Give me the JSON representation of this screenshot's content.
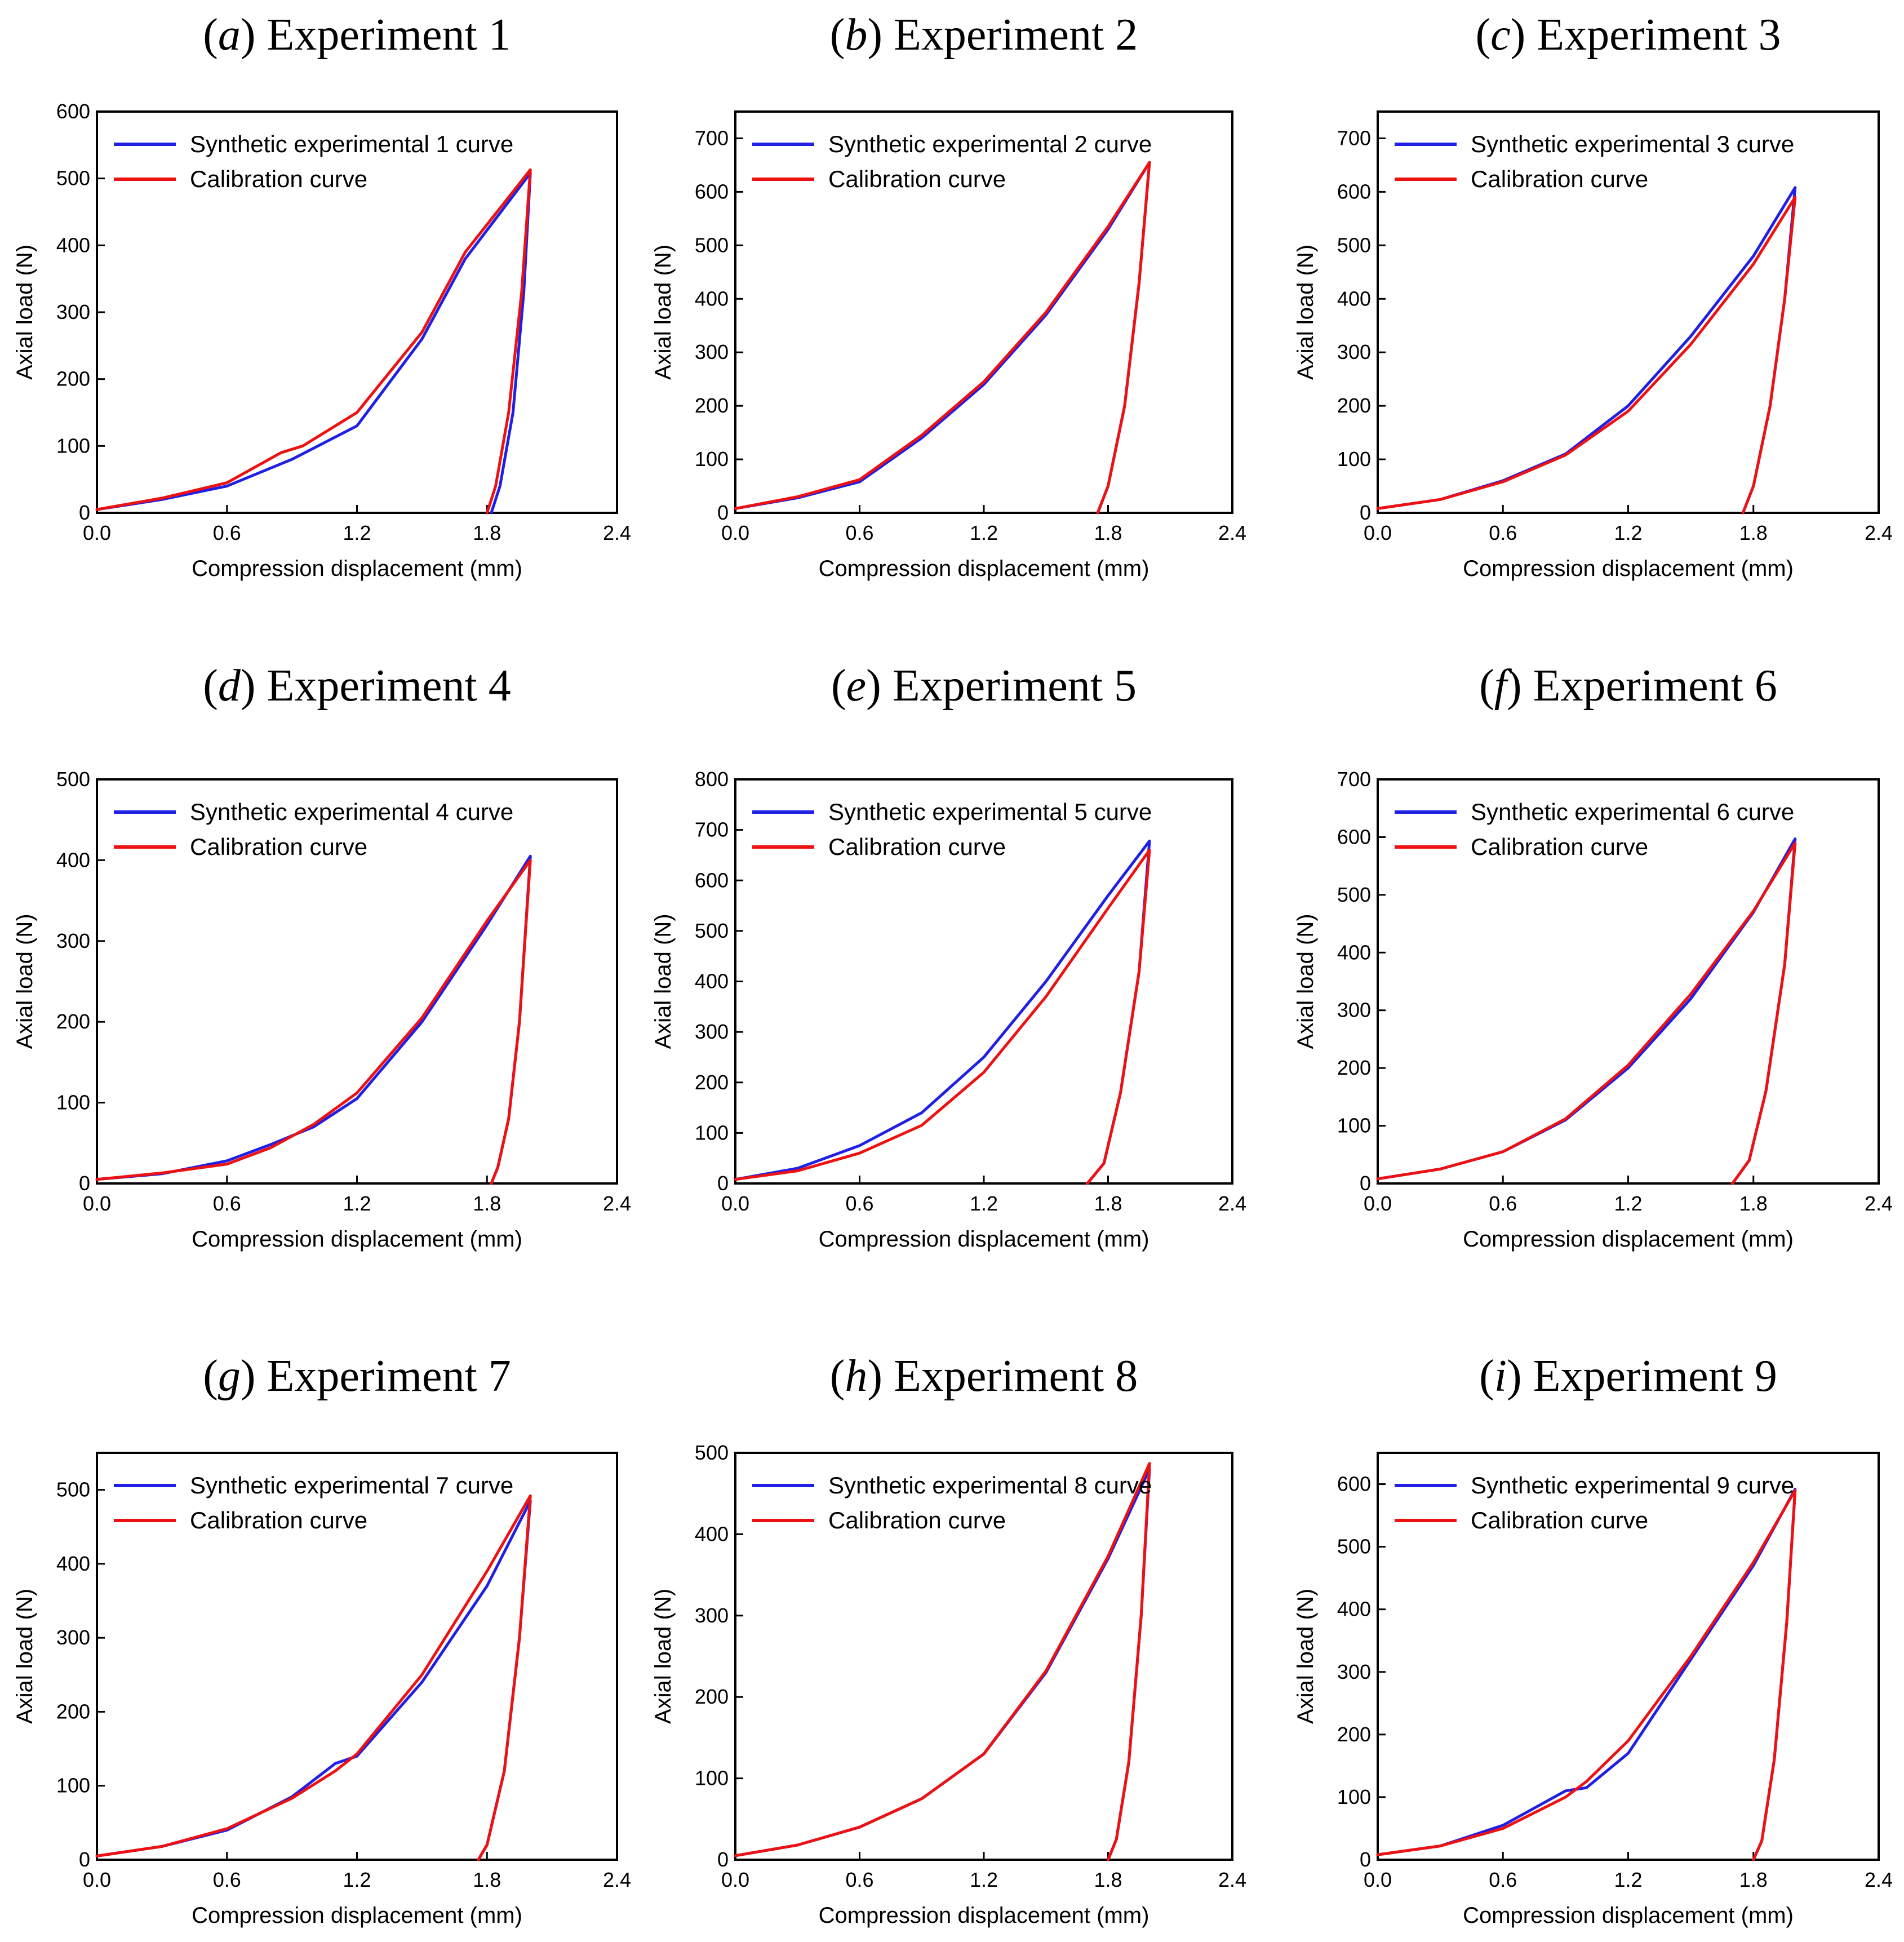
{
  "colors": {
    "synthetic": "#1f1fe6",
    "calibration": "#ee1111"
  },
  "chart_data": [
    {
      "type": "line",
      "panel": "a",
      "title": "Experiment 1",
      "xlabel": "Compression displacement (mm)",
      "ylabel": "Axial load (N)",
      "xlim": [
        0,
        2.4
      ],
      "ylim": [
        0,
        600
      ],
      "xticks": [
        "0.0",
        "0.6",
        "1.2",
        "1.8",
        "2.4"
      ],
      "yticks": [
        "0",
        "100",
        "200",
        "300",
        "400",
        "500",
        "600"
      ],
      "legend_loc": "top-left",
      "series": [
        {
          "name": "Synthetic experimental 1 curve",
          "x": [
            0,
            0.3,
            0.6,
            0.9,
            1.2,
            1.5,
            1.7,
            2.0,
            1.97,
            1.92,
            1.86,
            1.82
          ],
          "y": [
            5,
            20,
            40,
            80,
            130,
            260,
            380,
            508,
            330,
            150,
            40,
            0
          ]
        },
        {
          "name": "Calibration curve",
          "x": [
            0,
            0.3,
            0.6,
            0.85,
            0.95,
            1.2,
            1.5,
            1.7,
            2.0,
            1.96,
            1.9,
            1.84,
            1.8
          ],
          "y": [
            5,
            22,
            45,
            90,
            100,
            150,
            270,
            390,
            513,
            330,
            150,
            40,
            0
          ]
        }
      ]
    },
    {
      "type": "line",
      "panel": "b",
      "title": "Experiment 2",
      "xlabel": "Compression displacement (mm)",
      "ylabel": "Axial load (N)",
      "xlim": [
        0,
        2.4
      ],
      "ylim": [
        0,
        750
      ],
      "xticks": [
        "0.0",
        "0.6",
        "1.2",
        "1.8",
        "2.4"
      ],
      "yticks": [
        "0",
        "100",
        "200",
        "300",
        "400",
        "500",
        "600",
        "700"
      ],
      "legend_loc": "top-left",
      "series": [
        {
          "name": "Synthetic experimental 2 curve",
          "x": [
            0,
            0.3,
            0.6,
            0.9,
            1.2,
            1.5,
            1.8,
            2.0,
            1.95,
            1.88,
            1.8,
            1.75
          ],
          "y": [
            8,
            28,
            58,
            140,
            240,
            370,
            530,
            655,
            430,
            200,
            50,
            0
          ]
        },
        {
          "name": "Calibration curve",
          "x": [
            0,
            0.3,
            0.6,
            0.9,
            1.2,
            1.5,
            1.8,
            2.0,
            1.95,
            1.88,
            1.8,
            1.75
          ],
          "y": [
            8,
            30,
            62,
            145,
            245,
            375,
            535,
            655,
            430,
            200,
            50,
            0
          ]
        }
      ]
    },
    {
      "type": "line",
      "panel": "c",
      "title": "Experiment 3",
      "xlabel": "Compression displacement (mm)",
      "ylabel": "Axial load (N)",
      "xlim": [
        0,
        2.4
      ],
      "ylim": [
        0,
        750
      ],
      "xticks": [
        "0.0",
        "0.6",
        "1.2",
        "1.8",
        "2.4"
      ],
      "yticks": [
        "0",
        "100",
        "200",
        "300",
        "400",
        "500",
        "600",
        "700"
      ],
      "legend_loc": "top-left",
      "series": [
        {
          "name": "Synthetic experimental 3 curve",
          "x": [
            0,
            0.3,
            0.6,
            0.9,
            1.2,
            1.5,
            1.8,
            2.0,
            1.95,
            1.88,
            1.8,
            1.75
          ],
          "y": [
            8,
            25,
            60,
            110,
            200,
            330,
            480,
            608,
            400,
            200,
            50,
            0
          ]
        },
        {
          "name": "Calibration curve",
          "x": [
            0,
            0.3,
            0.6,
            0.9,
            1.2,
            1.5,
            1.8,
            2.0,
            1.95,
            1.88,
            1.8,
            1.75
          ],
          "y": [
            8,
            25,
            58,
            108,
            190,
            315,
            465,
            590,
            400,
            200,
            50,
            0
          ]
        }
      ]
    },
    {
      "type": "line",
      "panel": "d",
      "title": "Experiment 4",
      "xlabel": "Compression displacement (mm)",
      "ylabel": "Axial load (N)",
      "xlim": [
        0,
        2.4
      ],
      "ylim": [
        0,
        500
      ],
      "xticks": [
        "0.0",
        "0.6",
        "1.2",
        "1.8",
        "2.4"
      ],
      "yticks": [
        "0",
        "100",
        "200",
        "300",
        "400",
        "500"
      ],
      "legend_loc": "top-left",
      "series": [
        {
          "name": "Synthetic experimental 4 curve",
          "x": [
            0,
            0.3,
            0.6,
            0.8,
            1.0,
            1.2,
            1.5,
            1.8,
            2.0,
            1.95,
            1.9,
            1.85,
            1.82
          ],
          "y": [
            5,
            12,
            28,
            48,
            70,
            105,
            200,
            320,
            405,
            200,
            80,
            20,
            0
          ]
        },
        {
          "name": "Calibration curve",
          "x": [
            0,
            0.3,
            0.6,
            0.8,
            1.0,
            1.2,
            1.5,
            1.8,
            2.0,
            1.95,
            1.9,
            1.85,
            1.82
          ],
          "y": [
            5,
            13,
            24,
            44,
            73,
            112,
            205,
            325,
            400,
            200,
            80,
            20,
            0
          ]
        }
      ]
    },
    {
      "type": "line",
      "panel": "e",
      "title": "Experiment 5",
      "xlabel": "Compression displacement (mm)",
      "ylabel": "Axial load (N)",
      "xlim": [
        0,
        2.4
      ],
      "ylim": [
        0,
        800
      ],
      "xticks": [
        "0.0",
        "0.6",
        "1.2",
        "1.8",
        "2.4"
      ],
      "yticks": [
        "0",
        "100",
        "200",
        "300",
        "400",
        "500",
        "600",
        "700",
        "800"
      ],
      "legend_loc": "top-left",
      "series": [
        {
          "name": "Synthetic experimental 5 curve",
          "x": [
            0,
            0.3,
            0.6,
            0.9,
            1.2,
            1.5,
            1.8,
            2.0,
            1.95,
            1.86,
            1.78,
            1.7
          ],
          "y": [
            8,
            30,
            75,
            140,
            250,
            400,
            570,
            678,
            420,
            180,
            40,
            0
          ]
        },
        {
          "name": "Calibration curve",
          "x": [
            0,
            0.3,
            0.6,
            0.9,
            1.2,
            1.5,
            1.8,
            2.0,
            1.95,
            1.86,
            1.78,
            1.7
          ],
          "y": [
            8,
            25,
            60,
            115,
            220,
            370,
            545,
            660,
            420,
            180,
            40,
            0
          ]
        }
      ]
    },
    {
      "type": "line",
      "panel": "f",
      "title": "Experiment 6",
      "xlabel": "Compression displacement (mm)",
      "ylabel": "Axial load (N)",
      "xlim": [
        0,
        2.4
      ],
      "ylim": [
        0,
        700
      ],
      "xticks": [
        "0.0",
        "0.6",
        "1.2",
        "1.8",
        "2.4"
      ],
      "yticks": [
        "0",
        "100",
        "200",
        "300",
        "400",
        "500",
        "600",
        "700"
      ],
      "legend_loc": "top-left",
      "series": [
        {
          "name": "Synthetic experimental 6 curve",
          "x": [
            0,
            0.3,
            0.6,
            0.9,
            1.2,
            1.5,
            1.8,
            2.0,
            1.95,
            1.86,
            1.78,
            1.7
          ],
          "y": [
            8,
            25,
            55,
            110,
            200,
            320,
            470,
            597,
            380,
            160,
            40,
            0
          ]
        },
        {
          "name": "Calibration curve",
          "x": [
            0,
            0.3,
            0.6,
            0.9,
            1.2,
            1.5,
            1.8,
            2.0,
            1.95,
            1.86,
            1.78,
            1.7
          ],
          "y": [
            8,
            25,
            55,
            112,
            205,
            328,
            472,
            590,
            380,
            160,
            40,
            0
          ]
        }
      ]
    },
    {
      "type": "line",
      "panel": "g",
      "title": "Experiment 7",
      "xlabel": "Compression displacement (mm)",
      "ylabel": "Axial load (N)",
      "xlim": [
        0,
        2.4
      ],
      "ylim": [
        0,
        550
      ],
      "xticks": [
        "0.0",
        "0.6",
        "1.2",
        "1.8",
        "2.4"
      ],
      "yticks": [
        "0",
        "100",
        "200",
        "300",
        "400",
        "500"
      ],
      "legend_loc": "top-left",
      "series": [
        {
          "name": "Synthetic experimental 7 curve",
          "x": [
            0,
            0.3,
            0.6,
            0.9,
            1.1,
            1.2,
            1.5,
            1.8,
            2.0,
            1.95,
            1.88,
            1.8,
            1.76
          ],
          "y": [
            5,
            18,
            40,
            85,
            130,
            140,
            240,
            370,
            485,
            300,
            120,
            20,
            0
          ]
        },
        {
          "name": "Calibration curve",
          "x": [
            0,
            0.3,
            0.6,
            0.9,
            1.1,
            1.2,
            1.5,
            1.8,
            2.0,
            1.95,
            1.88,
            1.8,
            1.76
          ],
          "y": [
            5,
            18,
            42,
            83,
            120,
            143,
            250,
            390,
            492,
            300,
            120,
            20,
            0
          ]
        }
      ]
    },
    {
      "type": "line",
      "panel": "h",
      "title": "Experiment 8",
      "xlabel": "Compression displacement (mm)",
      "ylabel": "Axial load (N)",
      "xlim": [
        0,
        2.4
      ],
      "ylim": [
        0,
        500
      ],
      "xticks": [
        "0.0",
        "0.6",
        "1.2",
        "1.8",
        "2.4"
      ],
      "yticks": [
        "0",
        "100",
        "200",
        "300",
        "400",
        "500"
      ],
      "legend_loc": "top-left",
      "series": [
        {
          "name": "Synthetic experimental 8 curve",
          "x": [
            0,
            0.3,
            0.6,
            0.9,
            1.2,
            1.5,
            1.8,
            2.0,
            1.96,
            1.9,
            1.84,
            1.8
          ],
          "y": [
            5,
            18,
            40,
            75,
            130,
            230,
            370,
            480,
            300,
            120,
            25,
            0
          ]
        },
        {
          "name": "Calibration curve",
          "x": [
            0,
            0.3,
            0.6,
            0.9,
            1.2,
            1.5,
            1.8,
            2.0,
            1.96,
            1.9,
            1.84,
            1.8
          ],
          "y": [
            5,
            18,
            40,
            75,
            130,
            232,
            373,
            487,
            300,
            120,
            25,
            0
          ]
        }
      ]
    },
    {
      "type": "line",
      "panel": "i",
      "title": "Experiment 9",
      "xlabel": "Compression displacement (mm)",
      "ylabel": "Axial load (N)",
      "xlim": [
        0,
        2.4
      ],
      "ylim": [
        0,
        650
      ],
      "xticks": [
        "0.0",
        "0.6",
        "1.2",
        "1.8",
        "2.4"
      ],
      "yticks": [
        "0",
        "100",
        "200",
        "300",
        "400",
        "500",
        "600"
      ],
      "legend_loc": "top-left",
      "series": [
        {
          "name": "Synthetic experimental 9 curve",
          "x": [
            0,
            0.3,
            0.6,
            0.9,
            1.0,
            1.2,
            1.5,
            1.8,
            2.0,
            1.96,
            1.9,
            1.84,
            1.8
          ],
          "y": [
            8,
            22,
            55,
            110,
            115,
            170,
            320,
            470,
            592,
            380,
            160,
            30,
            0
          ]
        },
        {
          "name": "Calibration curve",
          "x": [
            0,
            0.3,
            0.6,
            0.9,
            1.0,
            1.2,
            1.5,
            1.8,
            2.0,
            1.96,
            1.9,
            1.84,
            1.8
          ],
          "y": [
            8,
            22,
            50,
            100,
            125,
            190,
            325,
            475,
            590,
            380,
            160,
            30,
            0
          ]
        }
      ]
    }
  ]
}
